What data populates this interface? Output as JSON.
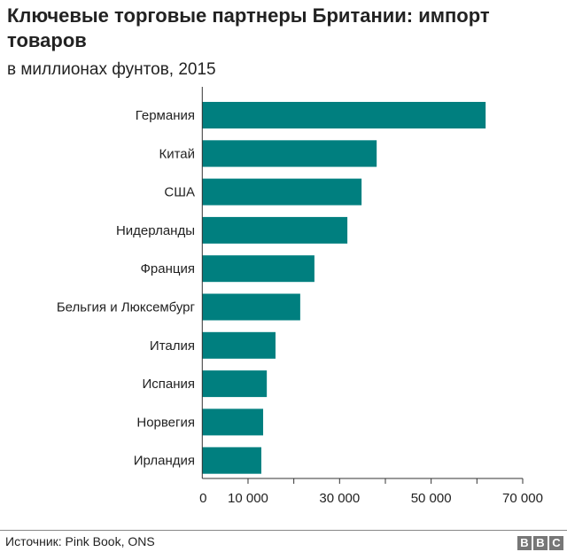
{
  "chart_data": {
    "type": "bar",
    "orientation": "horizontal",
    "title": "Ключевые торговые партнеры Британии: импорт товаров",
    "subtitle": "в миллионах фунтов, 2015",
    "categories": [
      "Германия",
      "Китай",
      "США",
      "Нидерланды",
      "Франция",
      "Бельгия и Люксембург",
      "Италия",
      "Испания",
      "Норвегия",
      "Ирландия"
    ],
    "values": [
      61900,
      38100,
      34800,
      31700,
      24500,
      21400,
      16000,
      14100,
      13300,
      12900
    ],
    "xlim": [
      0,
      70000
    ],
    "xticks": [
      0,
      10000,
      20000,
      30000,
      40000,
      50000,
      60000,
      70000
    ],
    "xtick_labels": [
      "0",
      "10 000",
      "",
      "30 000",
      "",
      "50 000",
      "",
      "70 000"
    ],
    "bar_color": "#007f7f",
    "grid": false
  },
  "footer": {
    "source": "Источник: Pink Book, ONS",
    "logo": [
      "B",
      "B",
      "C"
    ]
  }
}
